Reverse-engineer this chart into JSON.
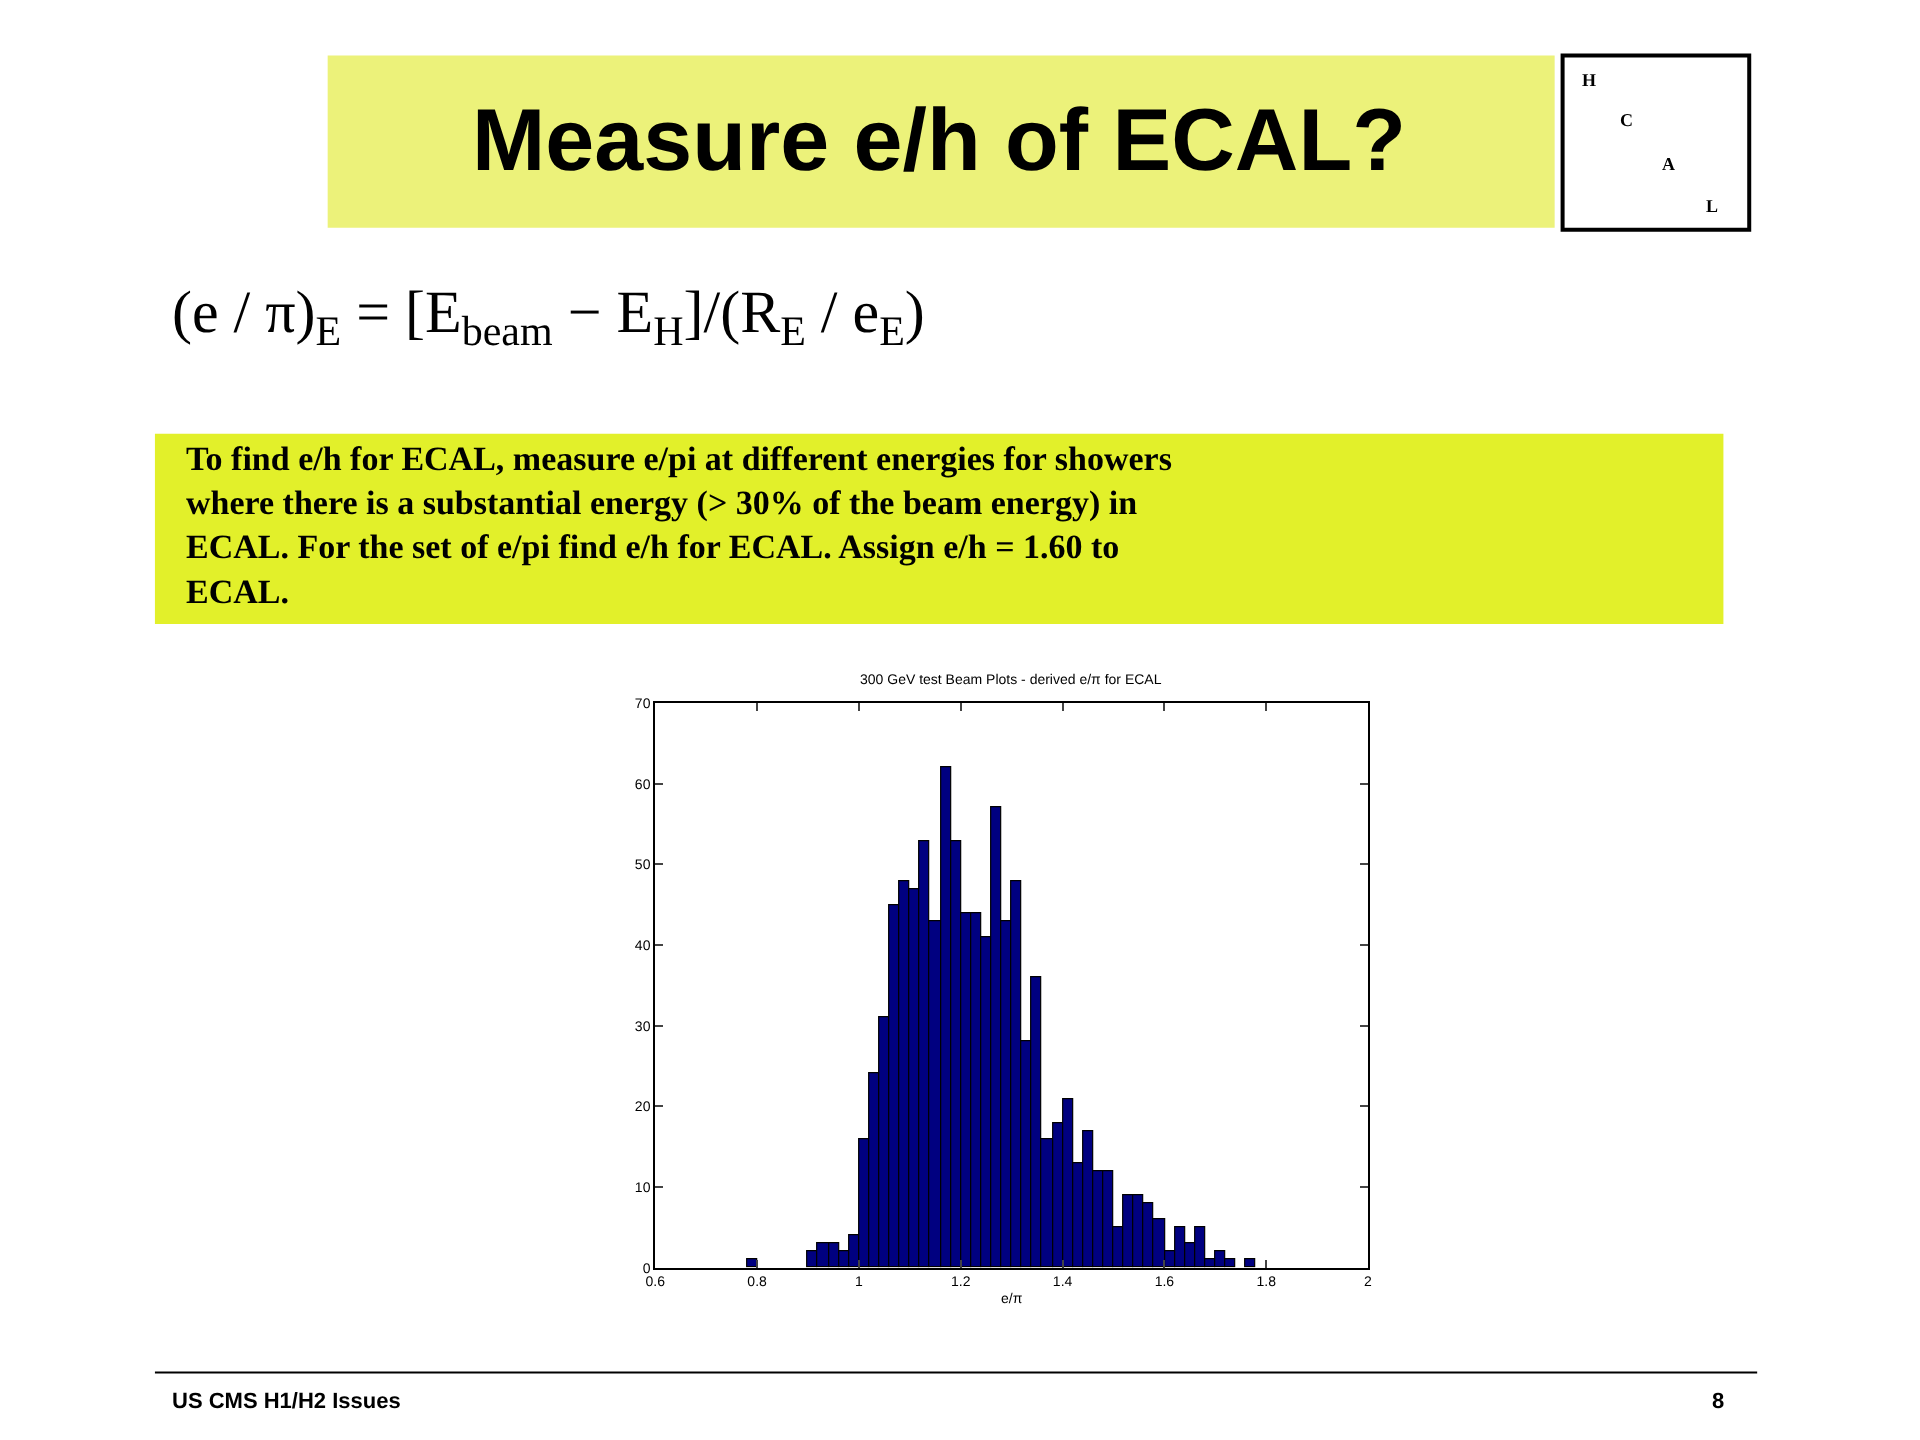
{
  "chart_data": {
    "type": "histogram",
    "title": "Measure e/h of ECAL?",
    "subtitle": "300 GeV test Beam Plots - derived e/π for ECAL",
    "xlabel": "e/π",
    "bins": [
      0.6,
      0.62,
      0.64,
      0.66,
      0.68,
      0.7,
      0.72,
      0.74,
      0.76,
      0.78,
      0.8,
      0.82,
      0.84,
      0.86,
      0.88,
      0.9,
      0.92,
      0.94,
      0.96,
      0.98,
      1.0,
      1.02,
      1.04,
      1.06,
      1.08,
      1.1,
      1.12,
      1.14,
      1.16,
      1.18,
      1.2,
      1.22,
      1.24,
      1.26,
      1.28,
      1.3,
      1.32,
      1.34,
      1.36,
      1.38,
      1.4,
      1.42,
      1.44,
      1.46,
      1.48,
      1.5,
      1.52,
      1.54,
      1.56,
      1.58,
      1.6,
      1.62,
      1.64,
      1.66,
      1.68,
      1.7,
      1.72,
      1.74,
      1.76,
      1.78,
      1.8,
      1.82,
      1.84,
      1.86,
      1.88,
      1.9,
      1.92,
      1.94,
      1.96,
      1.98,
      2.0
    ],
    "values": [
      0,
      0,
      0,
      0,
      0,
      0,
      0,
      0,
      0,
      1,
      0,
      0,
      0,
      0,
      0,
      2,
      3,
      3,
      2,
      4,
      16,
      24,
      31,
      45,
      48,
      47,
      53,
      43,
      62,
      53,
      44,
      44,
      41,
      57,
      43,
      48,
      28,
      36,
      16,
      18,
      21,
      13,
      17,
      12,
      12,
      5,
      9,
      9,
      8,
      6,
      2,
      5,
      3,
      5,
      1,
      2,
      1,
      0,
      1,
      0,
      0,
      0,
      0,
      0,
      0,
      0,
      0,
      0,
      0,
      0
    ],
    "color": "#000080",
    "xlim": [
      0.6,
      2.0
    ],
    "xticks": [
      0.6,
      0.8,
      1,
      1.2,
      1.4,
      1.6,
      1.8,
      2
    ],
    "ylim": [
      0,
      70
    ],
    "yticks": [
      0,
      10,
      20,
      30,
      40,
      50,
      60,
      70
    ],
    "annotations": [
      "(e / π)$_{E}$ = [E$_{beam}$ − E$_{H}$]/(R$_{E}$ / e$_{E}$)",
      "To find e/h for ECAL, measure e/pi at different energies for showers where there is a substantial energy (> 30% of the beam energy) in ECAL. For the set of e/pi find e/h for ECAL. Assign e/h = 1.60 to ECAL.",
      "H",
      "C",
      "A",
      "L",
      "US CMS H1/H2 Issues",
      "8"
    ]
  }
}
